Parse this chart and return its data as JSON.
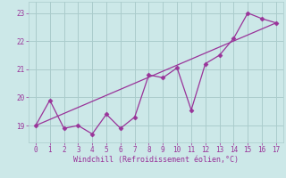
{
  "x_data": [
    0,
    1,
    2,
    3,
    4,
    5,
    6,
    7,
    8,
    9,
    10,
    11,
    12,
    13,
    14,
    15,
    16,
    17
  ],
  "y_data": [
    19.0,
    19.9,
    18.9,
    19.0,
    18.7,
    19.4,
    18.9,
    19.3,
    20.8,
    20.7,
    21.05,
    19.55,
    21.2,
    21.5,
    22.1,
    23.0,
    22.8,
    22.65
  ],
  "trend_x": [
    0,
    17
  ],
  "trend_y": [
    19.0,
    22.65
  ],
  "color": "#993399",
  "background_color": "#cce8e8",
  "grid_color": "#aacccc",
  "xlabel": "Windchill (Refroidissement éolien,°C)",
  "ylim": [
    18.4,
    23.4
  ],
  "xlim": [
    -0.5,
    17.5
  ],
  "yticks": [
    19,
    20,
    21,
    22,
    23
  ],
  "xticks": [
    0,
    1,
    2,
    3,
    4,
    5,
    6,
    7,
    8,
    9,
    10,
    11,
    12,
    13,
    14,
    15,
    16,
    17
  ],
  "marker": "D",
  "markersize": 2.5,
  "linewidth": 0.9,
  "tick_fontsize": 5.5,
  "xlabel_fontsize": 6.0
}
